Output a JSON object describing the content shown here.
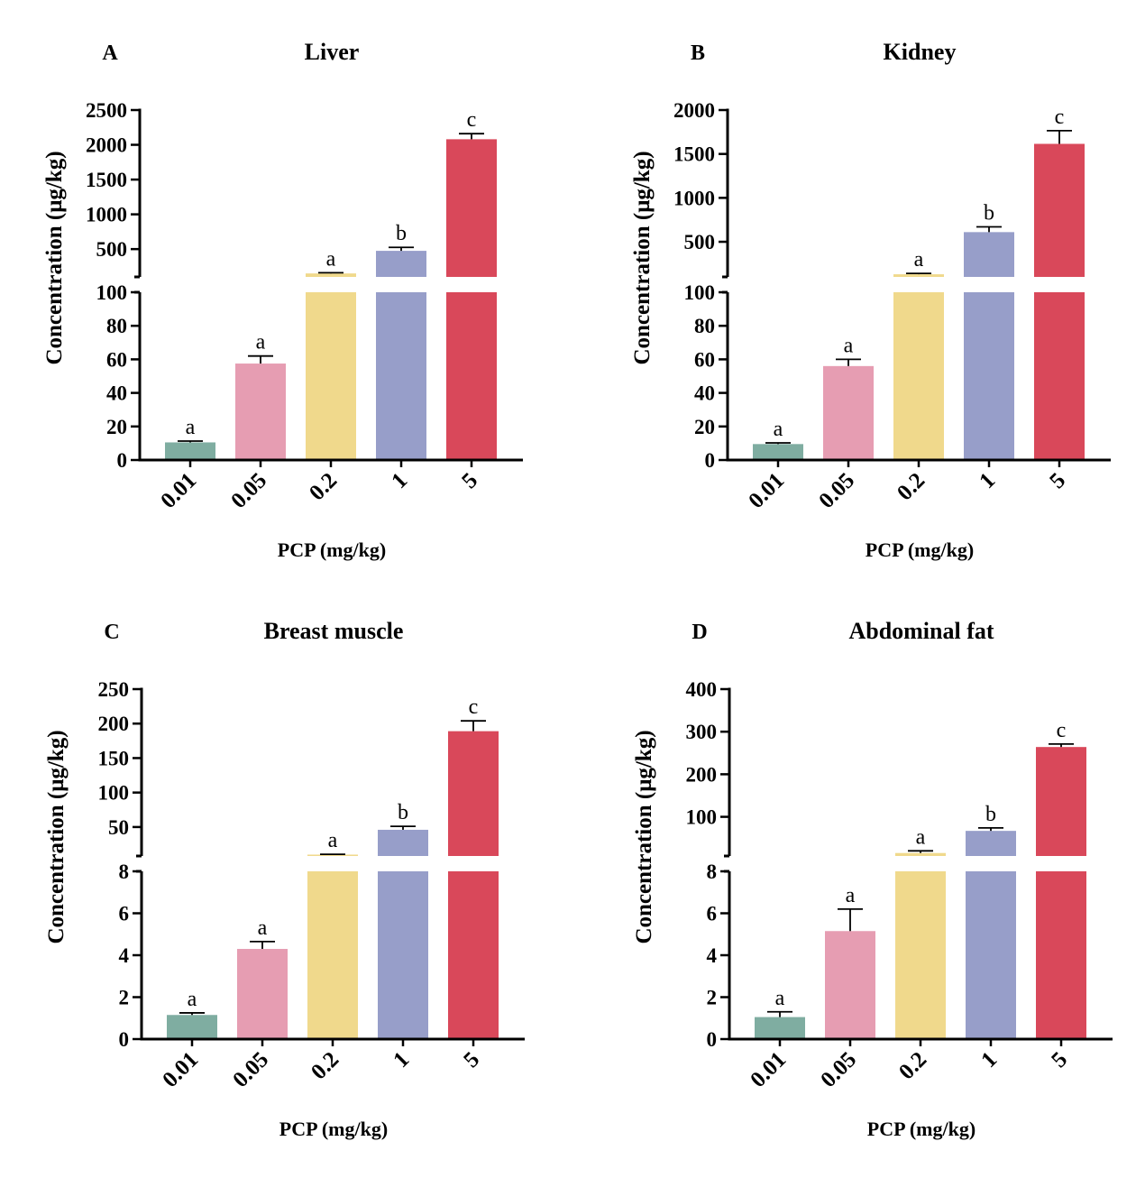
{
  "figure": {
    "panels": [
      {
        "letter": "A",
        "title": "Liver",
        "ylabel": "Concentration (μg/kg)",
        "xlabel": "PCP (mg/kg)",
        "colors": [
          "#7fada1",
          "#e69db2",
          "#f0d98c",
          "#979ec9",
          "#d9485a"
        ]
      },
      {
        "letter": "B",
        "title": "Kidney",
        "ylabel": "Concentration (μg/kg)",
        "xlabel": "PCP (mg/kg)",
        "colors": [
          "#7fada1",
          "#e69db2",
          "#f0d98c",
          "#979ec9",
          "#d9485a"
        ]
      },
      {
        "letter": "C",
        "title": "Breast muscle",
        "ylabel": "Concentration (μg/kg)",
        "xlabel": "PCP (mg/kg)",
        "colors": [
          "#7fada1",
          "#e69db2",
          "#f0d98c",
          "#979ec9",
          "#d9485a"
        ]
      },
      {
        "letter": "D",
        "title": "Abdominal fat",
        "ylabel": "Concentration (μg/kg)",
        "xlabel": "PCP (mg/kg)",
        "colors": [
          "#7fada1",
          "#e69db2",
          "#f0d98c",
          "#979ec9",
          "#d9485a"
        ]
      }
    ]
  },
  "chart_data": [
    {
      "type": "bar",
      "title": "Liver",
      "xlabel": "PCP (mg/kg)",
      "ylabel": "Concentration (μg/kg)",
      "categories": [
        "0.01",
        "0.05",
        "0.2",
        "1",
        "5"
      ],
      "values": [
        10.5,
        57.5,
        150,
        475,
        2080
      ],
      "errors": [
        0.8,
        4.5,
        10,
        50,
        80
      ],
      "significance": [
        "a",
        "a",
        "a",
        "b",
        "c"
      ],
      "axis_break": true,
      "lower_ylim": [
        0,
        100
      ],
      "lower_ticks": [
        0,
        20,
        40,
        60,
        80,
        100
      ],
      "upper_ylim": [
        100,
        2500
      ],
      "upper_ticks": [
        500,
        1000,
        1500,
        2000,
        2500
      ]
    },
    {
      "type": "bar",
      "title": "Kidney",
      "xlabel": "PCP (mg/kg)",
      "ylabel": "Concentration (μg/kg)",
      "categories": [
        "0.01",
        "0.05",
        "0.2",
        "1",
        "5"
      ],
      "values": [
        9.5,
        56,
        130,
        610,
        1615
      ],
      "errors": [
        0.7,
        4,
        10,
        60,
        150
      ],
      "significance": [
        "a",
        "a",
        "a",
        "b",
        "c"
      ],
      "axis_break": true,
      "lower_ylim": [
        0,
        100
      ],
      "lower_ticks": [
        0,
        20,
        40,
        60,
        80,
        100
      ],
      "upper_ylim": [
        100,
        2000
      ],
      "upper_ticks": [
        500,
        1000,
        1500,
        2000
      ]
    },
    {
      "type": "bar",
      "title": "Breast muscle",
      "xlabel": "PCP (mg/kg)",
      "ylabel": "Concentration (μg/kg)",
      "categories": [
        "0.01",
        "0.05",
        "0.2",
        "1",
        "5"
      ],
      "values": [
        1.15,
        4.3,
        10,
        46,
        189
      ],
      "errors": [
        0.1,
        0.35,
        0.5,
        5,
        15
      ],
      "significance": [
        "a",
        "a",
        "a",
        "b",
        "c"
      ],
      "axis_break": true,
      "lower_ylim": [
        0,
        8
      ],
      "lower_ticks": [
        0,
        2,
        4,
        6,
        8
      ],
      "upper_ylim": [
        8,
        250
      ],
      "upper_ticks": [
        50,
        100,
        150,
        200,
        250
      ]
    },
    {
      "type": "bar",
      "title": "Abdominal fat",
      "xlabel": "PCP (mg/kg)",
      "ylabel": "Concentration (μg/kg)",
      "categories": [
        "0.01",
        "0.05",
        "0.2",
        "1",
        "5"
      ],
      "values": [
        1.05,
        5.15,
        15,
        67,
        264
      ],
      "errors": [
        0.25,
        1.05,
        5,
        7,
        7
      ],
      "significance": [
        "a",
        "a",
        "a",
        "b",
        "c"
      ],
      "axis_break": true,
      "lower_ylim": [
        0,
        8
      ],
      "lower_ticks": [
        0,
        2,
        4,
        6,
        8
      ],
      "upper_ylim": [
        8,
        400
      ],
      "upper_ticks": [
        100,
        200,
        300,
        400
      ]
    }
  ]
}
